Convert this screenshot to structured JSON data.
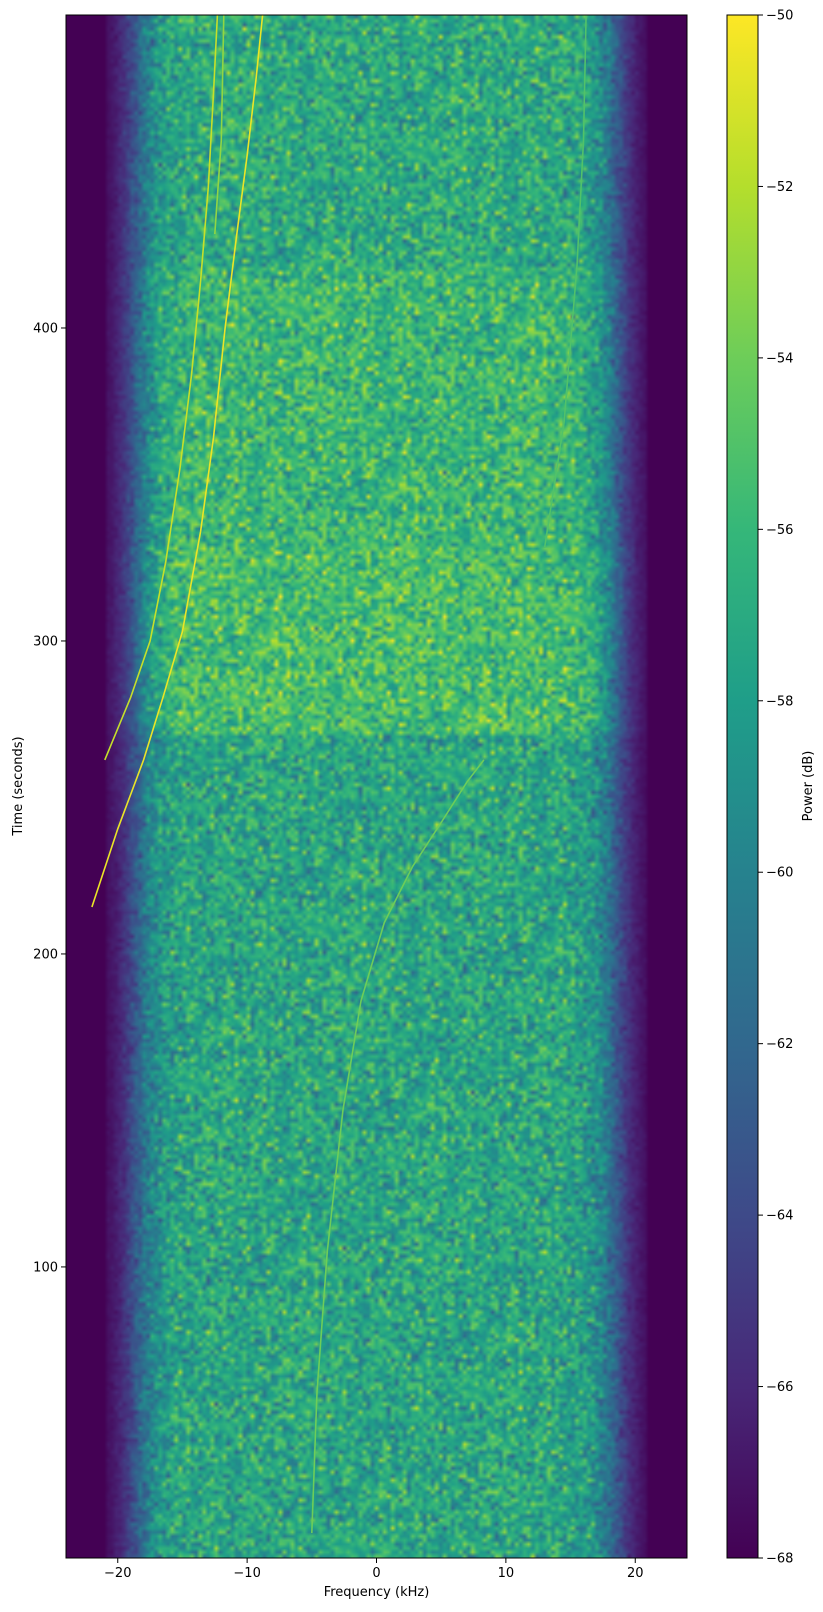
{
  "chart_data": {
    "type": "heatmap",
    "title": "",
    "xlabel": "Frequency (kHz)",
    "ylabel": "Time (seconds)",
    "xlim": [
      -24,
      24
    ],
    "ylim": [
      7,
      500
    ],
    "xticks": [
      -20,
      -10,
      0,
      10,
      20
    ],
    "xtick_labels": [
      "−20",
      "−10",
      "0",
      "10",
      "20"
    ],
    "yticks": [
      100,
      200,
      300,
      400
    ],
    "ytick_labels": [
      "100",
      "200",
      "300",
      "400"
    ],
    "grid": false,
    "colorbar": {
      "label": "Power (dB)",
      "colormap": "viridis",
      "range": [
        -68,
        -50
      ],
      "ticks": [
        -68,
        -66,
        -64,
        -62,
        -60,
        -58,
        -56,
        -54,
        -52,
        -50
      ],
      "tick_labels": [
        "−68",
        "−66",
        "−64",
        "−62",
        "−60",
        "−58",
        "−56",
        "−54",
        "−52",
        "−50"
      ]
    },
    "noise_floor_db": -68,
    "passband_khz": [
      -20,
      20
    ],
    "background_db": {
      "t_below_270": -57.3,
      "t_270_to_330": -55.4,
      "t_330_to_420": -56.0,
      "t_above_420": -57.0
    },
    "signal_tracks": [
      {
        "points": [
          [
            -22,
            215
          ],
          [
            -20,
            240
          ],
          [
            -18,
            262
          ],
          [
            -16.5,
            282
          ],
          [
            -15,
            303
          ],
          [
            -13.6,
            335
          ],
          [
            -12.6,
            365
          ],
          [
            -11.7,
            400
          ],
          [
            -10.8,
            430
          ],
          [
            -10,
            455
          ],
          [
            -9.3,
            480
          ],
          [
            -8.8,
            500
          ]
        ],
        "power_db": -50.5
      },
      {
        "points": [
          [
            -21,
            262
          ],
          [
            -19,
            282
          ],
          [
            -17.5,
            300
          ],
          [
            -16.3,
            325
          ],
          [
            -15.2,
            355
          ],
          [
            -14.3,
            385
          ],
          [
            -13.6,
            415
          ],
          [
            -13,
            445
          ],
          [
            -12.6,
            475
          ],
          [
            -12.3,
            500
          ]
        ],
        "power_db": -51.5
      },
      {
        "points": [
          [
            -5,
            15
          ],
          [
            -4.6,
            60
          ],
          [
            -3.8,
            105
          ],
          [
            -2.6,
            150
          ],
          [
            -1.2,
            185
          ],
          [
            0.6,
            210
          ],
          [
            2.8,
            228
          ],
          [
            5,
            242
          ],
          [
            7,
            255
          ],
          [
            8.3,
            262
          ]
        ],
        "power_db": -54
      },
      {
        "points": [
          [
            -12.5,
            430
          ],
          [
            -12,
            460
          ],
          [
            -11.8,
            500
          ]
        ],
        "power_db": -53
      },
      {
        "points": [
          [
            13,
            330
          ],
          [
            14.5,
            370
          ],
          [
            15.5,
            420
          ],
          [
            16,
            460
          ],
          [
            16.2,
            500
          ]
        ],
        "power_db": -55
      }
    ]
  }
}
